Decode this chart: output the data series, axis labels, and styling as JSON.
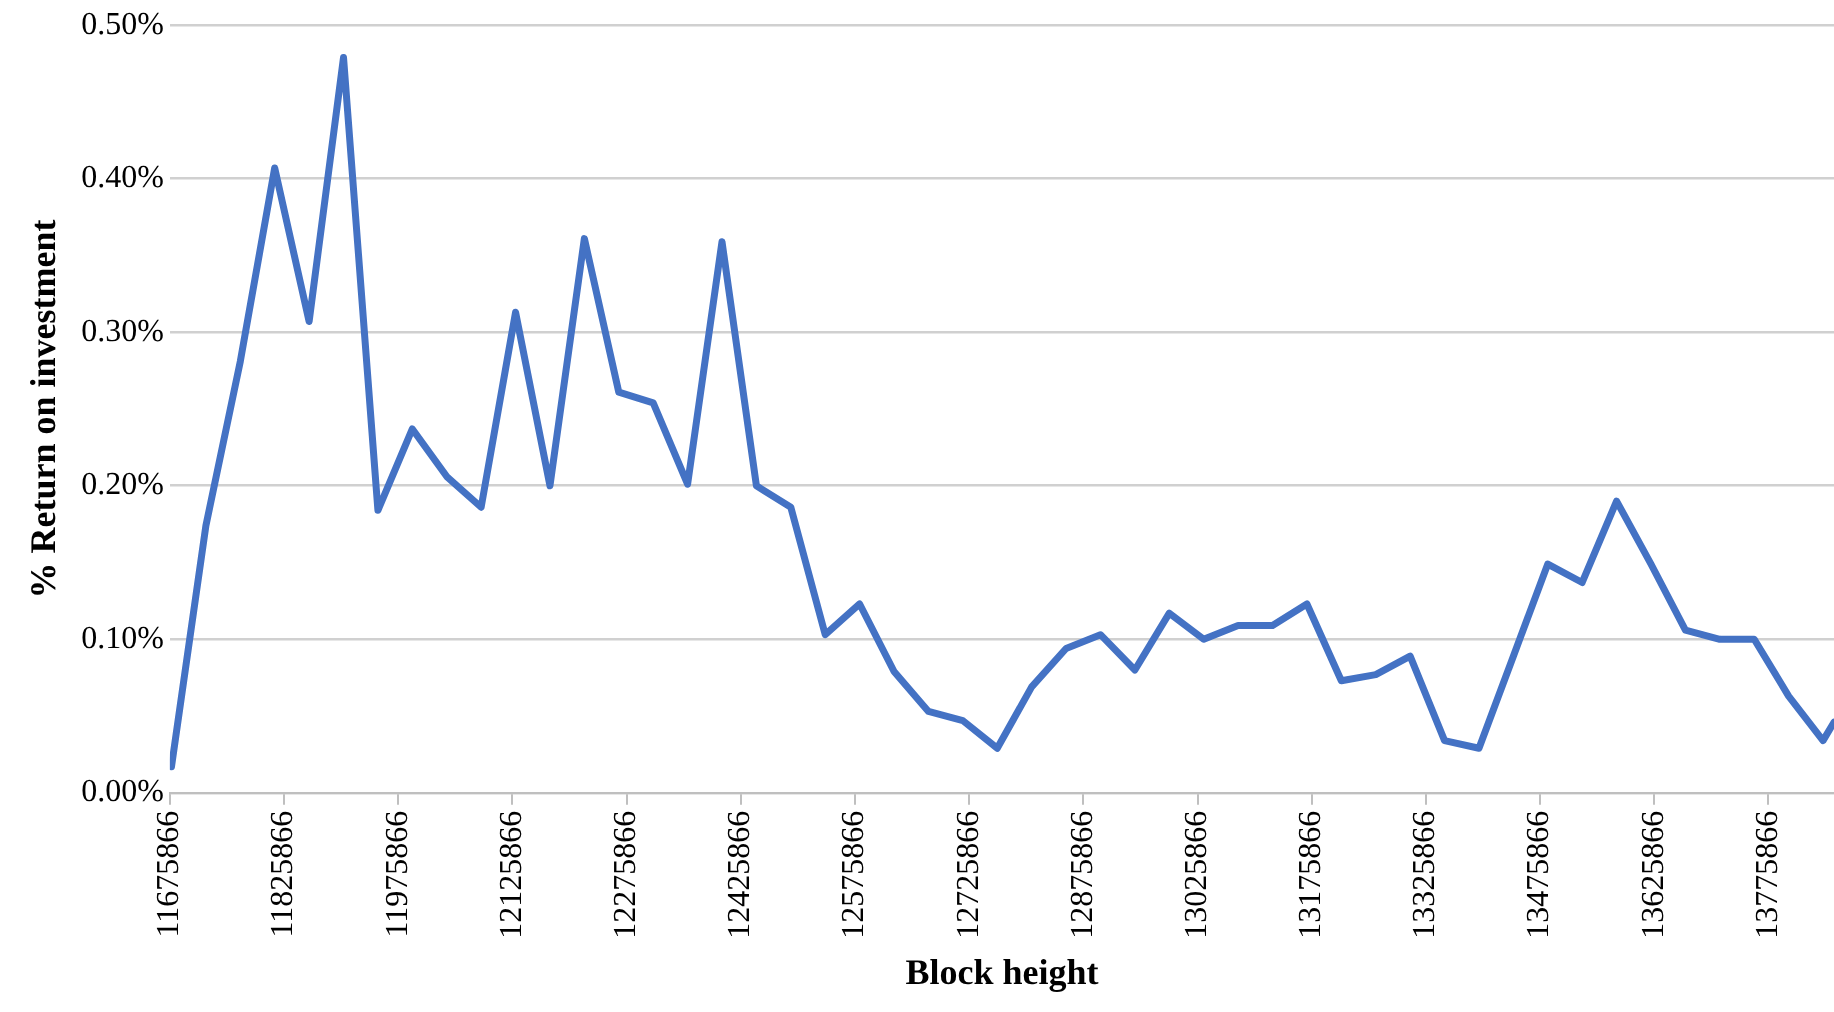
{
  "chart_data": {
    "type": "line",
    "xlabel": "Block height",
    "ylabel": "% Return on investment",
    "x": [
      11678000,
      11723200,
      11768400,
      11813600,
      11858800,
      11904000,
      11949200,
      11994400,
      12039600,
      12084800,
      12130000,
      12175200,
      12220400,
      12265600,
      12310800,
      12356000,
      12401200,
      12446400,
      12491600,
      12536800,
      12582000,
      12627200,
      12672400,
      12717600,
      12762800,
      12808000,
      12853200,
      12898400,
      12943600,
      12988800,
      13034000,
      13079200,
      13124400,
      13169600,
      13214800,
      13260000,
      13305200,
      13350400,
      13395600,
      13440800,
      13486000,
      13531200,
      13576400,
      13621600,
      13666800,
      13712000,
      13757200,
      13802400,
      13847600,
      13862000
    ],
    "series": [
      {
        "color": "#4472c4",
        "values": [
          0.017,
          0.174,
          0.281,
          0.407,
          0.307,
          0.479,
          0.184,
          0.237,
          0.206,
          0.186,
          0.313,
          0.2,
          0.361,
          0.261,
          0.254,
          0.201,
          0.359,
          0.2,
          0.186,
          0.103,
          0.123,
          0.079,
          0.053,
          0.047,
          0.029,
          0.069,
          0.094,
          0.103,
          0.08,
          0.117,
          0.1,
          0.109,
          0.109,
          0.123,
          0.073,
          0.077,
          0.089,
          0.034,
          0.029,
          0.089,
          0.149,
          0.137,
          0.19,
          0.149,
          0.106,
          0.1,
          0.1,
          0.063,
          0.034,
          0.046
        ]
      }
    ],
    "xlim": [
      11675866,
      13862000
    ],
    "xticks": [
      11675866,
      11825866,
      11975866,
      12125866,
      12275866,
      12425866,
      12575866,
      12725866,
      12875866,
      13025866,
      13175866,
      13325866,
      13475866,
      13625866,
      13775866
    ],
    "ylim": [
      0,
      0.5
    ],
    "yticks": [
      {
        "value": 0,
        "label": "0.00%"
      },
      {
        "value": 0.1,
        "label": "0.10%"
      },
      {
        "value": 0.2,
        "label": "0.20%"
      },
      {
        "value": 0.3,
        "label": "0.30%"
      },
      {
        "value": 0.4,
        "label": "0.40%"
      },
      {
        "value": 0.5,
        "label": "0.50%"
      }
    ],
    "grid": "y",
    "legend": false,
    "marker": "none",
    "line_style": "solid"
  }
}
